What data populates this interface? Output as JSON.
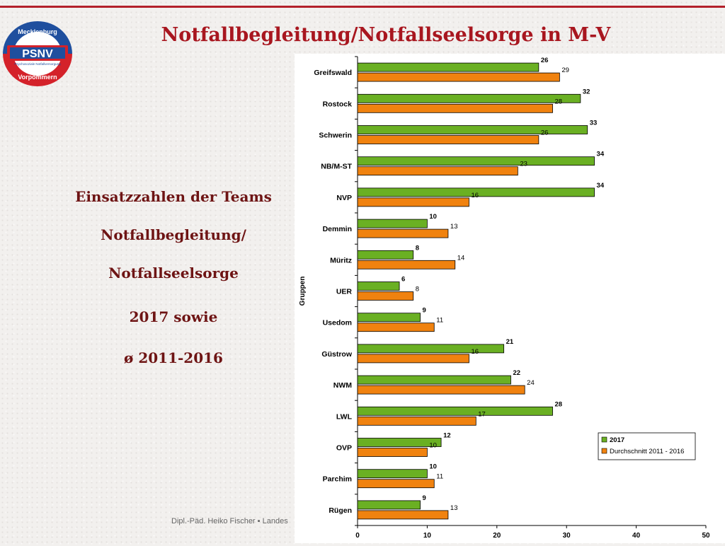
{
  "title": "Notfallbegleitung/Notfallseelsorge in M-V",
  "logo": {
    "text_top": "Mecklenburg",
    "text_main": "PSNV",
    "text_sub": "Psychosoziale Notfallversorgung",
    "text_bottom": "Vorpommern"
  },
  "side_text": {
    "line1": "Einsatzzahlen der Teams",
    "line2": "Notfallbegleitung/",
    "line3": "Notfallseelsorge",
    "line4": "2017 sowie",
    "line5": "ø 2011-2016"
  },
  "footer": "Dipl.-Päd. Heiko Fischer ▪ Landes",
  "colors": {
    "accent": "#b3202a",
    "series_2017": "#6ab023",
    "series_avg": "#f0820f"
  },
  "chart_data": {
    "type": "bar",
    "orientation": "horizontal",
    "ylabel": "Gruppen",
    "xlabel": "",
    "xlim": [
      0,
      50
    ],
    "xticks": [
      0,
      10,
      20,
      30,
      40,
      50
    ],
    "categories": [
      "Greifswald",
      "Rostock",
      "Schwerin",
      "NB/M-ST",
      "NVP",
      "Demmin",
      "Müritz",
      "UER",
      "Usedom",
      "Güstrow",
      "NWM",
      "LWL",
      "OVP",
      "Parchim",
      "Rügen"
    ],
    "series": [
      {
        "name": "2017",
        "values": [
          26,
          32,
          33,
          34,
          34,
          10,
          8,
          6,
          9,
          21,
          22,
          28,
          12,
          10,
          9
        ]
      },
      {
        "name": "Durchschnitt 2011 - 2016",
        "values": [
          29,
          28,
          26,
          23,
          16,
          13,
          14,
          8,
          11,
          16,
          24,
          17,
          10,
          11,
          13
        ]
      }
    ],
    "legend_position": "bottom-right",
    "grid": false
  }
}
